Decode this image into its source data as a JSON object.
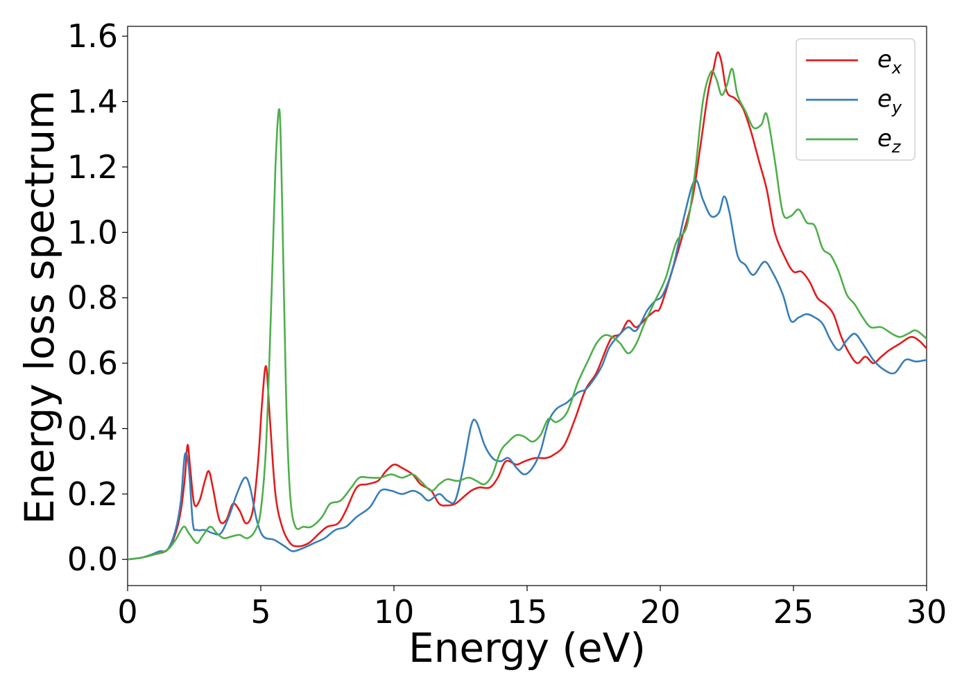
{
  "chart_data": {
    "type": "line",
    "title": "",
    "xlabel": "Energy (eV)",
    "ylabel": "Energy loss spectrum",
    "xlim": [
      0,
      30
    ],
    "ylim": [
      -0.08,
      1.63
    ],
    "x_ticks": [
      0,
      5,
      10,
      15,
      20,
      25,
      30
    ],
    "y_ticks": [
      0.0,
      0.2,
      0.4,
      0.6,
      0.8,
      1.0,
      1.2,
      1.4,
      1.6
    ],
    "x_tick_labels": [
      "0",
      "5",
      "10",
      "15",
      "20",
      "25",
      "30"
    ],
    "y_tick_labels": [
      "0.0",
      "0.2",
      "0.4",
      "0.6",
      "0.8",
      "1.0",
      "1.2",
      "1.4",
      "1.6"
    ],
    "grid": false,
    "legend_position": "top-right",
    "series": [
      {
        "name": "e_x",
        "label_base": "e",
        "label_sub": "x",
        "color": "#e41a1c",
        "points": [
          [
            0,
            0.0
          ],
          [
            0.5,
            0.005
          ],
          [
            1.0,
            0.015
          ],
          [
            1.5,
            0.03
          ],
          [
            1.8,
            0.08
          ],
          [
            2.0,
            0.15
          ],
          [
            2.15,
            0.25
          ],
          [
            2.25,
            0.35
          ],
          [
            2.35,
            0.28
          ],
          [
            2.5,
            0.17
          ],
          [
            2.7,
            0.18
          ],
          [
            2.9,
            0.24
          ],
          [
            3.05,
            0.27
          ],
          [
            3.2,
            0.22
          ],
          [
            3.45,
            0.12
          ],
          [
            3.7,
            0.12
          ],
          [
            3.95,
            0.17
          ],
          [
            4.2,
            0.15
          ],
          [
            4.45,
            0.11
          ],
          [
            4.7,
            0.15
          ],
          [
            4.9,
            0.3
          ],
          [
            5.05,
            0.48
          ],
          [
            5.2,
            0.59
          ],
          [
            5.35,
            0.42
          ],
          [
            5.55,
            0.2
          ],
          [
            5.8,
            0.1
          ],
          [
            6.1,
            0.05
          ],
          [
            6.4,
            0.04
          ],
          [
            6.8,
            0.05
          ],
          [
            7.2,
            0.08
          ],
          [
            7.5,
            0.1
          ],
          [
            7.9,
            0.11
          ],
          [
            8.2,
            0.15
          ],
          [
            8.6,
            0.22
          ],
          [
            9.0,
            0.23
          ],
          [
            9.4,
            0.24
          ],
          [
            9.7,
            0.27
          ],
          [
            10.0,
            0.29
          ],
          [
            10.3,
            0.28
          ],
          [
            10.7,
            0.26
          ],
          [
            11.0,
            0.23
          ],
          [
            11.4,
            0.21
          ],
          [
            11.7,
            0.17
          ],
          [
            12.0,
            0.165
          ],
          [
            12.3,
            0.17
          ],
          [
            12.6,
            0.19
          ],
          [
            12.9,
            0.21
          ],
          [
            13.2,
            0.22
          ],
          [
            13.6,
            0.22
          ],
          [
            13.9,
            0.25
          ],
          [
            14.2,
            0.3
          ],
          [
            14.6,
            0.29
          ],
          [
            14.9,
            0.3
          ],
          [
            15.3,
            0.31
          ],
          [
            15.7,
            0.31
          ],
          [
            16.0,
            0.32
          ],
          [
            16.4,
            0.35
          ],
          [
            16.8,
            0.43
          ],
          [
            17.2,
            0.52
          ],
          [
            17.6,
            0.57
          ],
          [
            18.0,
            0.65
          ],
          [
            18.2,
            0.68
          ],
          [
            18.5,
            0.69
          ],
          [
            18.8,
            0.73
          ],
          [
            19.1,
            0.71
          ],
          [
            19.5,
            0.74
          ],
          [
            19.8,
            0.76
          ],
          [
            20.0,
            0.77
          ],
          [
            20.4,
            0.87
          ],
          [
            20.8,
            0.98
          ],
          [
            21.2,
            1.1
          ],
          [
            21.5,
            1.26
          ],
          [
            21.8,
            1.43
          ],
          [
            22.0,
            1.5
          ],
          [
            22.15,
            1.55
          ],
          [
            22.3,
            1.52
          ],
          [
            22.5,
            1.43
          ],
          [
            22.8,
            1.41
          ],
          [
            23.1,
            1.38
          ],
          [
            23.4,
            1.31
          ],
          [
            23.7,
            1.22
          ],
          [
            24.0,
            1.13
          ],
          [
            24.3,
            1.0
          ],
          [
            24.7,
            0.92
          ],
          [
            25.0,
            0.88
          ],
          [
            25.3,
            0.88
          ],
          [
            25.6,
            0.85
          ],
          [
            25.9,
            0.8
          ],
          [
            26.2,
            0.78
          ],
          [
            26.5,
            0.75
          ],
          [
            26.8,
            0.68
          ],
          [
            27.1,
            0.63
          ],
          [
            27.4,
            0.6
          ],
          [
            27.7,
            0.62
          ],
          [
            28.0,
            0.6
          ],
          [
            28.3,
            0.62
          ],
          [
            28.6,
            0.64
          ],
          [
            29.0,
            0.66
          ],
          [
            29.4,
            0.68
          ],
          [
            29.7,
            0.67
          ],
          [
            30.0,
            0.645
          ]
        ]
      },
      {
        "name": "e_y",
        "label_base": "e",
        "label_sub": "y",
        "color": "#377eb8",
        "points": [
          [
            0,
            0.0
          ],
          [
            0.5,
            0.005
          ],
          [
            0.9,
            0.015
          ],
          [
            1.2,
            0.025
          ],
          [
            1.5,
            0.03
          ],
          [
            1.8,
            0.09
          ],
          [
            2.0,
            0.18
          ],
          [
            2.15,
            0.32
          ],
          [
            2.3,
            0.28
          ],
          [
            2.45,
            0.11
          ],
          [
            2.6,
            0.09
          ],
          [
            2.9,
            0.09
          ],
          [
            3.2,
            0.08
          ],
          [
            3.5,
            0.08
          ],
          [
            3.8,
            0.13
          ],
          [
            4.1,
            0.2
          ],
          [
            4.4,
            0.25
          ],
          [
            4.6,
            0.22
          ],
          [
            4.85,
            0.12
          ],
          [
            5.1,
            0.07
          ],
          [
            5.5,
            0.06
          ],
          [
            5.9,
            0.04
          ],
          [
            6.2,
            0.025
          ],
          [
            6.6,
            0.035
          ],
          [
            7.0,
            0.05
          ],
          [
            7.4,
            0.065
          ],
          [
            7.8,
            0.09
          ],
          [
            8.2,
            0.1
          ],
          [
            8.6,
            0.13
          ],
          [
            9.1,
            0.16
          ],
          [
            9.5,
            0.21
          ],
          [
            9.9,
            0.21
          ],
          [
            10.3,
            0.2
          ],
          [
            10.7,
            0.21
          ],
          [
            11.0,
            0.2
          ],
          [
            11.3,
            0.18
          ],
          [
            11.7,
            0.2
          ],
          [
            12.0,
            0.18
          ],
          [
            12.3,
            0.18
          ],
          [
            12.6,
            0.28
          ],
          [
            12.9,
            0.41
          ],
          [
            13.1,
            0.42
          ],
          [
            13.4,
            0.35
          ],
          [
            13.7,
            0.31
          ],
          [
            14.0,
            0.3
          ],
          [
            14.3,
            0.31
          ],
          [
            14.6,
            0.28
          ],
          [
            14.9,
            0.26
          ],
          [
            15.2,
            0.28
          ],
          [
            15.5,
            0.33
          ],
          [
            15.8,
            0.42
          ],
          [
            16.1,
            0.46
          ],
          [
            16.5,
            0.48
          ],
          [
            16.9,
            0.51
          ],
          [
            17.2,
            0.52
          ],
          [
            17.5,
            0.55
          ],
          [
            17.8,
            0.59
          ],
          [
            18.1,
            0.65
          ],
          [
            18.5,
            0.69
          ],
          [
            18.8,
            0.71
          ],
          [
            19.1,
            0.7
          ],
          [
            19.5,
            0.76
          ],
          [
            19.8,
            0.79
          ],
          [
            20.1,
            0.81
          ],
          [
            20.5,
            0.9
          ],
          [
            20.9,
            1.05
          ],
          [
            21.3,
            1.16
          ],
          [
            21.6,
            1.1
          ],
          [
            21.9,
            1.05
          ],
          [
            22.2,
            1.06
          ],
          [
            22.4,
            1.11
          ],
          [
            22.6,
            1.06
          ],
          [
            22.9,
            0.93
          ],
          [
            23.2,
            0.9
          ],
          [
            23.5,
            0.87
          ],
          [
            23.9,
            0.91
          ],
          [
            24.2,
            0.88
          ],
          [
            24.6,
            0.81
          ],
          [
            24.9,
            0.73
          ],
          [
            25.2,
            0.74
          ],
          [
            25.5,
            0.75
          ],
          [
            25.8,
            0.74
          ],
          [
            26.1,
            0.72
          ],
          [
            26.4,
            0.67
          ],
          [
            26.7,
            0.64
          ],
          [
            27.0,
            0.67
          ],
          [
            27.3,
            0.69
          ],
          [
            27.6,
            0.66
          ],
          [
            28.0,
            0.61
          ],
          [
            28.4,
            0.58
          ],
          [
            28.8,
            0.57
          ],
          [
            29.2,
            0.61
          ],
          [
            29.6,
            0.605
          ],
          [
            30.0,
            0.61
          ]
        ]
      },
      {
        "name": "e_z",
        "label_base": "e",
        "label_sub": "z",
        "color": "#4daf4a",
        "points": [
          [
            0,
            0.0
          ],
          [
            0.5,
            0.005
          ],
          [
            1.0,
            0.015
          ],
          [
            1.5,
            0.03
          ],
          [
            1.8,
            0.06
          ],
          [
            2.1,
            0.1
          ],
          [
            2.3,
            0.08
          ],
          [
            2.6,
            0.05
          ],
          [
            2.8,
            0.07
          ],
          [
            3.1,
            0.1
          ],
          [
            3.35,
            0.08
          ],
          [
            3.6,
            0.065
          ],
          [
            3.9,
            0.07
          ],
          [
            4.2,
            0.075
          ],
          [
            4.5,
            0.065
          ],
          [
            4.8,
            0.09
          ],
          [
            5.0,
            0.15
          ],
          [
            5.2,
            0.35
          ],
          [
            5.4,
            0.8
          ],
          [
            5.55,
            1.2
          ],
          [
            5.7,
            1.375
          ],
          [
            5.8,
            1.1
          ],
          [
            5.95,
            0.5
          ],
          [
            6.1,
            0.2
          ],
          [
            6.3,
            0.1
          ],
          [
            6.6,
            0.1
          ],
          [
            6.9,
            0.1
          ],
          [
            7.3,
            0.13
          ],
          [
            7.6,
            0.17
          ],
          [
            8.0,
            0.18
          ],
          [
            8.4,
            0.22
          ],
          [
            8.7,
            0.25
          ],
          [
            9.1,
            0.25
          ],
          [
            9.5,
            0.25
          ],
          [
            9.9,
            0.26
          ],
          [
            10.3,
            0.25
          ],
          [
            10.7,
            0.26
          ],
          [
            11.0,
            0.24
          ],
          [
            11.4,
            0.21
          ],
          [
            11.7,
            0.23
          ],
          [
            12.0,
            0.245
          ],
          [
            12.4,
            0.24
          ],
          [
            12.8,
            0.25
          ],
          [
            13.1,
            0.24
          ],
          [
            13.4,
            0.23
          ],
          [
            13.7,
            0.26
          ],
          [
            14.0,
            0.33
          ],
          [
            14.3,
            0.36
          ],
          [
            14.6,
            0.38
          ],
          [
            14.9,
            0.375
          ],
          [
            15.2,
            0.36
          ],
          [
            15.5,
            0.38
          ],
          [
            15.8,
            0.43
          ],
          [
            16.1,
            0.42
          ],
          [
            16.5,
            0.45
          ],
          [
            16.9,
            0.54
          ],
          [
            17.3,
            0.61
          ],
          [
            17.6,
            0.66
          ],
          [
            17.9,
            0.685
          ],
          [
            18.2,
            0.68
          ],
          [
            18.5,
            0.66
          ],
          [
            18.8,
            0.63
          ],
          [
            19.1,
            0.66
          ],
          [
            19.4,
            0.72
          ],
          [
            19.8,
            0.79
          ],
          [
            20.2,
            0.86
          ],
          [
            20.6,
            0.97
          ],
          [
            21.0,
            1.02
          ],
          [
            21.3,
            1.18
          ],
          [
            21.6,
            1.4
          ],
          [
            21.9,
            1.49
          ],
          [
            22.1,
            1.47
          ],
          [
            22.3,
            1.42
          ],
          [
            22.5,
            1.45
          ],
          [
            22.7,
            1.5
          ],
          [
            22.9,
            1.42
          ],
          [
            23.2,
            1.37
          ],
          [
            23.5,
            1.32
          ],
          [
            23.8,
            1.33
          ],
          [
            24.0,
            1.36
          ],
          [
            24.3,
            1.22
          ],
          [
            24.6,
            1.06
          ],
          [
            24.9,
            1.05
          ],
          [
            25.2,
            1.07
          ],
          [
            25.5,
            1.03
          ],
          [
            25.8,
            1.02
          ],
          [
            26.1,
            0.95
          ],
          [
            26.4,
            0.93
          ],
          [
            26.7,
            0.88
          ],
          [
            27.0,
            0.81
          ],
          [
            27.3,
            0.78
          ],
          [
            27.6,
            0.74
          ],
          [
            27.9,
            0.71
          ],
          [
            28.3,
            0.71
          ],
          [
            28.7,
            0.69
          ],
          [
            29.0,
            0.68
          ],
          [
            29.3,
            0.69
          ],
          [
            29.6,
            0.7
          ],
          [
            30.0,
            0.675
          ]
        ]
      }
    ]
  }
}
